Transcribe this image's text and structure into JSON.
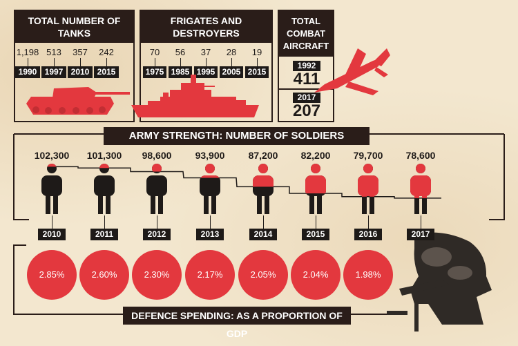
{
  "tanks": {
    "title": "TOTAL NUMBER OF TANKS",
    "items": [
      {
        "value": "1,198",
        "year": "1990"
      },
      {
        "value": "513",
        "year": "1997"
      },
      {
        "value": "357",
        "year": "2010"
      },
      {
        "value": "242",
        "year": "2015"
      }
    ]
  },
  "ships": {
    "title": "FRIGATES AND DESTROYERS",
    "items": [
      {
        "value": "70",
        "year": "1975"
      },
      {
        "value": "56",
        "year": "1985"
      },
      {
        "value": "37",
        "year": "1995"
      },
      {
        "value": "28",
        "year": "2005"
      },
      {
        "value": "19",
        "year": "2015"
      }
    ]
  },
  "aircraft": {
    "title": "TOTAL COMBAT AIRCRAFT",
    "items": [
      {
        "year": "1992",
        "value": "411"
      },
      {
        "year": "2017",
        "value": "207"
      }
    ]
  },
  "army": {
    "title": "ARMY STRENGTH: NUMBER OF SOLDIERS"
  },
  "gdp": {
    "title": "DEFENCE SPENDING: AS A PROPORTION OF GDP"
  },
  "colors": {
    "red": "#e3383e",
    "dark": "#2a1d19",
    "background": "#f3e7cf"
  },
  "chart_data": [
    {
      "type": "bar",
      "title": "TOTAL NUMBER OF TANKS",
      "categories": [
        "1990",
        "1997",
        "2010",
        "2015"
      ],
      "values": [
        1198,
        513,
        357,
        242
      ]
    },
    {
      "type": "bar",
      "title": "FRIGATES AND DESTROYERS",
      "categories": [
        "1975",
        "1985",
        "1995",
        "2005",
        "2015"
      ],
      "values": [
        70,
        56,
        37,
        28,
        19
      ]
    },
    {
      "type": "bar",
      "title": "TOTAL COMBAT AIRCRAFT",
      "categories": [
        "1992",
        "2017"
      ],
      "values": [
        411,
        207
      ]
    },
    {
      "type": "line",
      "title": "ARMY STRENGTH: NUMBER OF SOLDIERS",
      "x": [
        "2010",
        "2011",
        "2012",
        "2013",
        "2014",
        "2015",
        "2016",
        "2017"
      ],
      "values": [
        102300,
        101300,
        98600,
        93900,
        87200,
        82200,
        79700,
        78600
      ],
      "labels": [
        "102,300",
        "101,300",
        "98,600",
        "93,900",
        "87,200",
        "82,200",
        "79,700",
        "78,600"
      ],
      "ylim": [
        77000,
        103000
      ]
    },
    {
      "type": "bar",
      "title": "DEFENCE SPENDING: AS A PROPORTION OF GDP",
      "categories": [
        "2010",
        "2011",
        "2012",
        "2013",
        "2014",
        "2015",
        "2016"
      ],
      "values": [
        2.85,
        2.6,
        2.3,
        2.17,
        2.05,
        2.04,
        1.98
      ],
      "labels": [
        "2.85%",
        "2.60%",
        "2.30%",
        "2.17%",
        "2.05%",
        "2.04%",
        "1.98%"
      ]
    }
  ]
}
